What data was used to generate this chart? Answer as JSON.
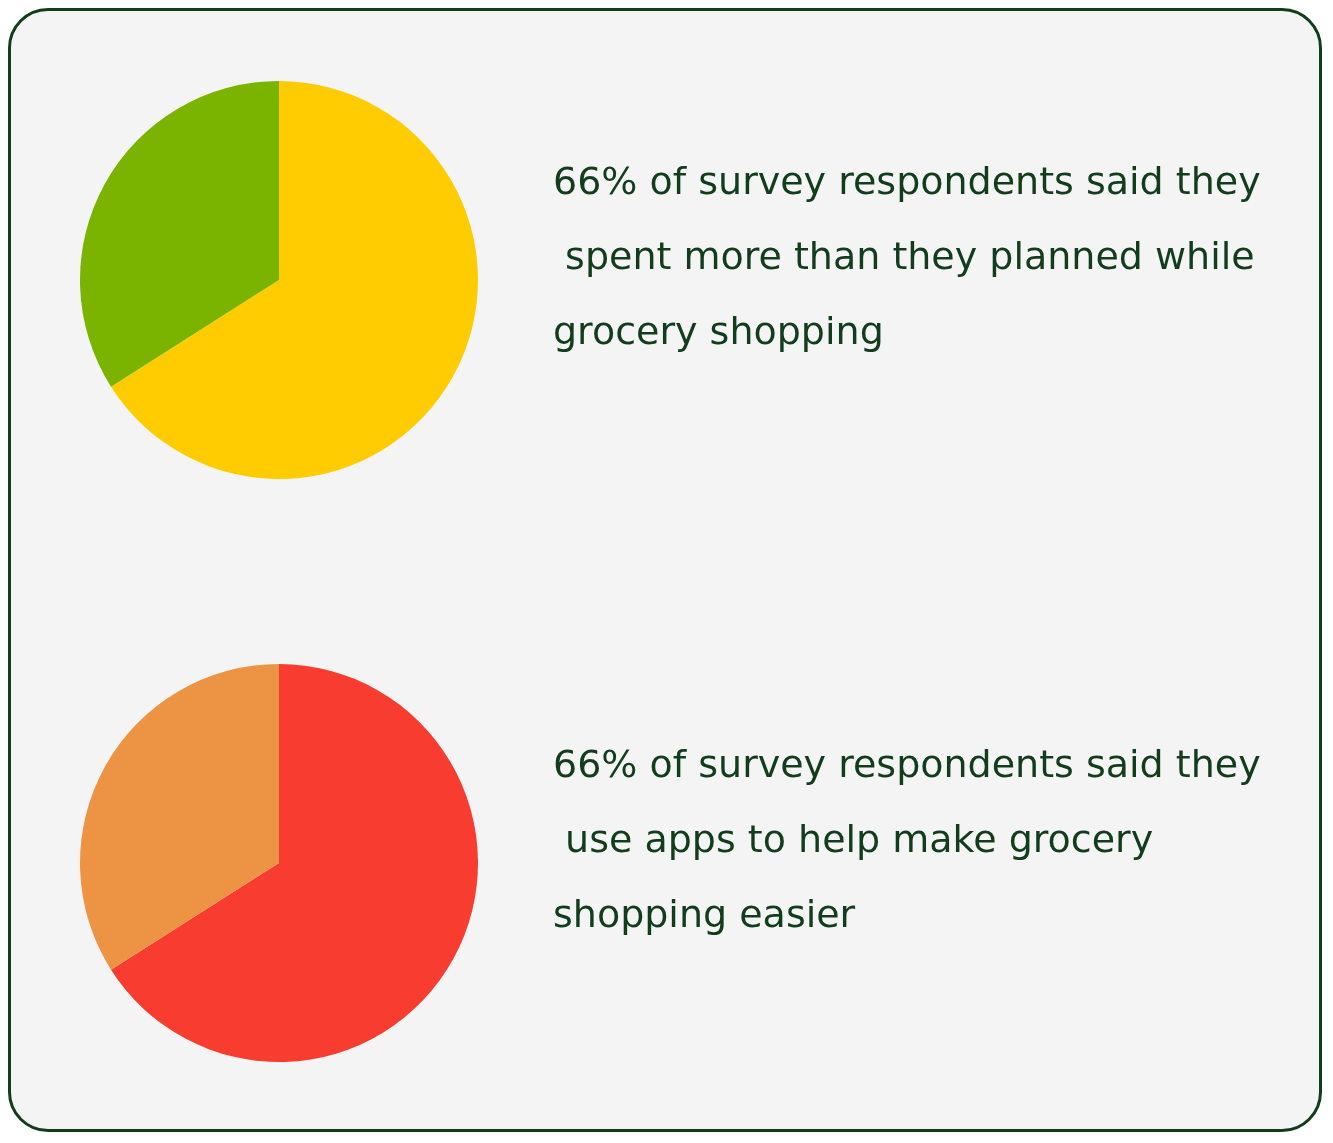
{
  "chart_data": [
    {
      "type": "pie",
      "title": "66% of survey respondents said they spent more than they planned while grocery shopping",
      "categories": [
        null,
        null
      ],
      "values": [
        66,
        34
      ],
      "colors": [
        "#fecc00",
        "#7ab300"
      ]
    },
    {
      "type": "pie",
      "title": "66% of survey respondents said they use apps to help make grocery shopping easier",
      "categories": [
        null,
        null
      ],
      "values": [
        66,
        34
      ],
      "colors": [
        "#f93c30",
        "#ec9444"
      ]
    }
  ]
}
